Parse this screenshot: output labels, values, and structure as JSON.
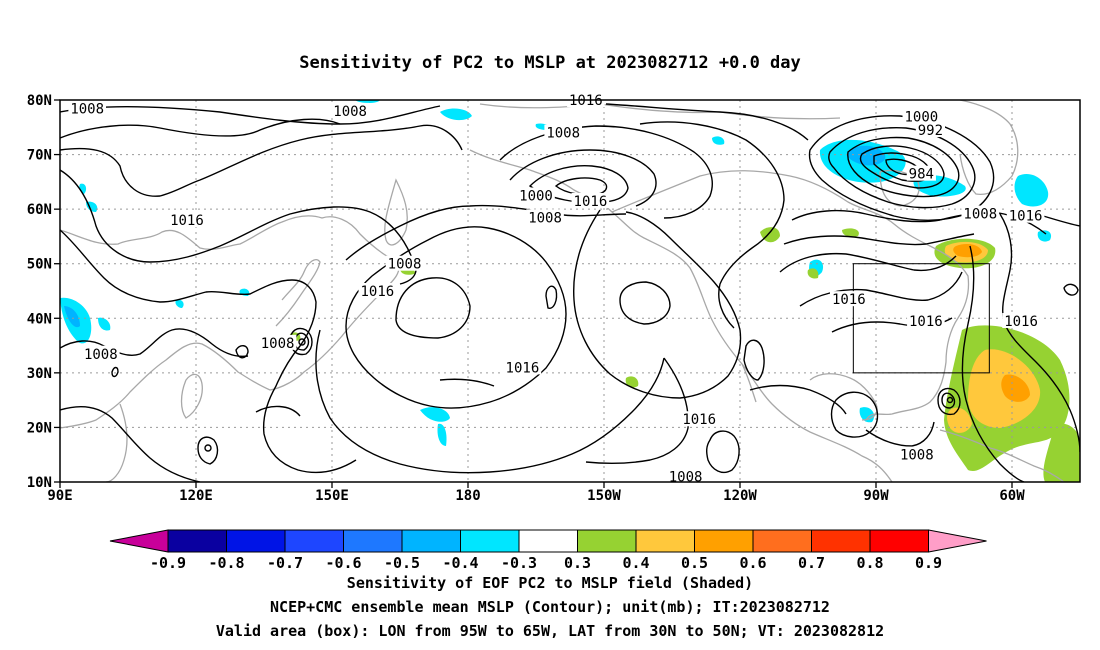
{
  "title": "Sensitivity of PC2 to MSLP at 2023082712 +0.0 day",
  "map": {
    "lat_labels": [
      "80N",
      "70N",
      "60N",
      "50N",
      "40N",
      "30N",
      "20N",
      "10N"
    ],
    "lat_values": [
      80,
      70,
      60,
      50,
      40,
      30,
      20,
      10
    ],
    "lon_labels": [
      "90E",
      "120E",
      "150E",
      "180",
      "150W",
      "120W",
      "90W",
      "60W"
    ],
    "lon_values": [
      90,
      120,
      150,
      180,
      210,
      240,
      270,
      300
    ],
    "lon_range": [
      90,
      315
    ],
    "lat_range": [
      10,
      80
    ],
    "valid_box": {
      "lon": [
        265,
        295
      ],
      "lat": [
        30,
        50
      ]
    },
    "contour_labels": [
      {
        "text": "1008",
        "lon": 96,
        "lat": 78.4
      },
      {
        "text": "1008",
        "lon": 154,
        "lat": 78
      },
      {
        "text": "1016",
        "lon": 206,
        "lat": 80
      },
      {
        "text": "1008",
        "lon": 201,
        "lat": 74
      },
      {
        "text": "1000",
        "lon": 280,
        "lat": 77
      },
      {
        "text": "992",
        "lon": 282,
        "lat": 74.5
      },
      {
        "text": "984",
        "lon": 280,
        "lat": 66.5
      },
      {
        "text": "1000",
        "lon": 195,
        "lat": 62.5
      },
      {
        "text": "1008",
        "lon": 197,
        "lat": 58.5
      },
      {
        "text": "1016",
        "lon": 207,
        "lat": 61.5
      },
      {
        "text": "1008",
        "lon": 293,
        "lat": 59.2
      },
      {
        "text": "1016",
        "lon": 303,
        "lat": 58.8
      },
      {
        "text": "1016",
        "lon": 118,
        "lat": 58
      },
      {
        "text": "1008",
        "lon": 166,
        "lat": 50
      },
      {
        "text": "1016",
        "lon": 160,
        "lat": 45
      },
      {
        "text": "1016",
        "lon": 264,
        "lat": 43.5
      },
      {
        "text": "1016",
        "lon": 281,
        "lat": 39.5
      },
      {
        "text": "1016",
        "lon": 302,
        "lat": 39.5
      },
      {
        "text": "1008",
        "lon": 138,
        "lat": 35.5
      },
      {
        "text": "1008",
        "lon": 99,
        "lat": 33.5
      },
      {
        "text": "1016",
        "lon": 192,
        "lat": 31
      },
      {
        "text": "1016",
        "lon": 231,
        "lat": 21.5
      },
      {
        "text": "1008",
        "lon": 228,
        "lat": 11
      },
      {
        "text": "1008",
        "lon": 279,
        "lat": 15
      }
    ]
  },
  "colorbar": {
    "labels": [
      "-0.9",
      "-0.8",
      "-0.7",
      "-0.6",
      "-0.5",
      "-0.4",
      "-0.3",
      "0.3",
      "0.4",
      "0.5",
      "0.6",
      "0.7",
      "0.8",
      "0.9"
    ],
    "colors": [
      "#0a00a0",
      "#0014e6",
      "#1e46ff",
      "#1e78ff",
      "#00b4ff",
      "#00e6ff",
      "#ffffff",
      "#96d232",
      "#ffc83c",
      "#ffa000",
      "#ff6e1e",
      "#ff3200",
      "#ff0000"
    ],
    "low_arrow_color": "#c8009a",
    "high_arrow_color": "#ff9ec8"
  },
  "captions": [
    "Sensitivity of EOF PC2 to MSLP field (Shaded)",
    "NCEP+CMC ensemble mean MSLP (Contour); unit(mb); IT:2023082712",
    "Valid area (box): LON from 95W to 65W, LAT from 30N to 50N; VT: 2023082812"
  ]
}
